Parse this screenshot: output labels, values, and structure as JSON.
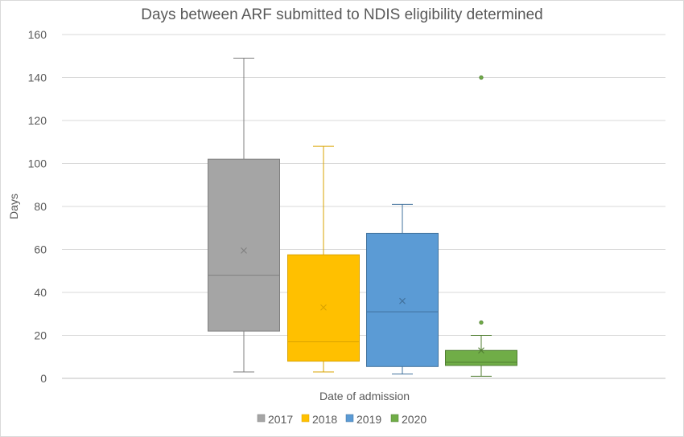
{
  "chart_data": {
    "type": "box",
    "title": "Days between ARF submitted to NDIS eligibility determined",
    "xlabel": "Date of admission",
    "ylabel": "Days",
    "ylim": [
      0,
      160
    ],
    "yticks": [
      0,
      20,
      40,
      60,
      80,
      100,
      120,
      140,
      160
    ],
    "grid": true,
    "legend_position": "bottom",
    "series": [
      {
        "name": "2017",
        "color": "#a5a5a5",
        "stroke": "#7f7f7f",
        "min": 3,
        "q1": 22,
        "median": 48,
        "q3": 102,
        "max": 149,
        "mean": 59.5,
        "outliers": []
      },
      {
        "name": "2018",
        "color": "#ffc000",
        "stroke": "#d9a300",
        "min": 3,
        "q1": 8,
        "median": 17,
        "q3": 57.5,
        "max": 108,
        "mean": 33,
        "outliers": []
      },
      {
        "name": "2019",
        "color": "#5b9bd5",
        "stroke": "#41719c",
        "min": 2,
        "q1": 5.5,
        "median": 31,
        "q3": 67.5,
        "max": 81,
        "mean": 36,
        "outliers": []
      },
      {
        "name": "2020",
        "color": "#70ad47",
        "stroke": "#507e32",
        "min": 1,
        "q1": 6,
        "median": 7.5,
        "q3": 13,
        "max": 20,
        "mean": 13,
        "outliers": [
          26,
          140
        ]
      }
    ]
  }
}
